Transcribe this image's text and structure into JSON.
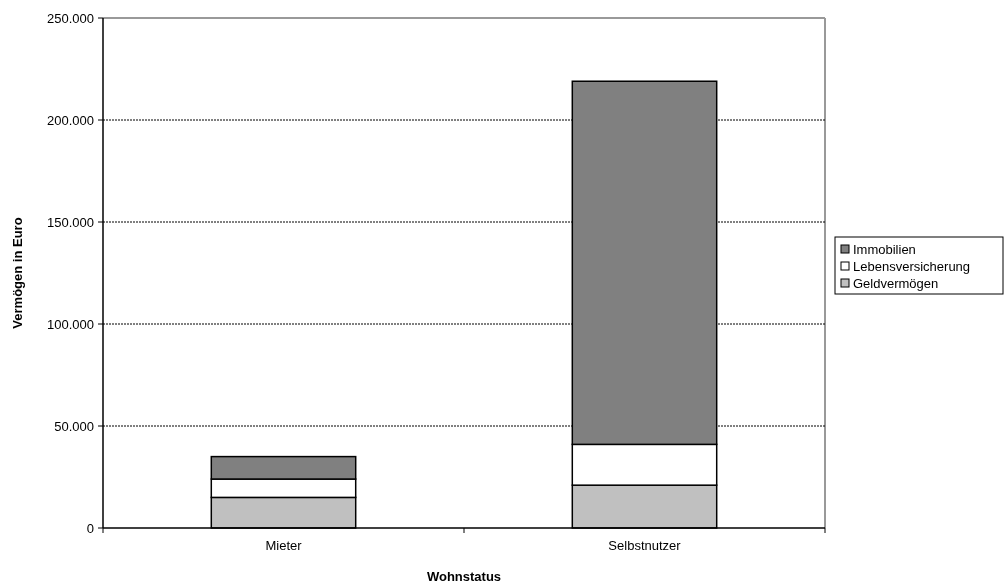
{
  "chart_data": {
    "type": "bar",
    "stacked": true,
    "xlabel": "Wohnstatus",
    "ylabel": "Vermögen in Euro",
    "categories": [
      "Mieter",
      "Selbstnutzer"
    ],
    "series": [
      {
        "name": "Geldvermögen",
        "color": "#c0c0c0",
        "values": [
          15000,
          21000
        ]
      },
      {
        "name": "Lebensversicherung",
        "color": "#ffffff",
        "values": [
          9000,
          20000
        ]
      },
      {
        "name": "Immobilien",
        "color": "#808080",
        "values": [
          11000,
          178000
        ]
      }
    ],
    "ylim": [
      0,
      250000
    ],
    "yticks": [
      {
        "value": 0,
        "label": "0"
      },
      {
        "value": 50000,
        "label": "50.000"
      },
      {
        "value": 100000,
        "label": "100.000"
      },
      {
        "value": 150000,
        "label": "150.000"
      },
      {
        "value": 200000,
        "label": "200.000"
      },
      {
        "value": 250000,
        "label": "250.000"
      }
    ],
    "grid": "y",
    "legend": "right"
  }
}
